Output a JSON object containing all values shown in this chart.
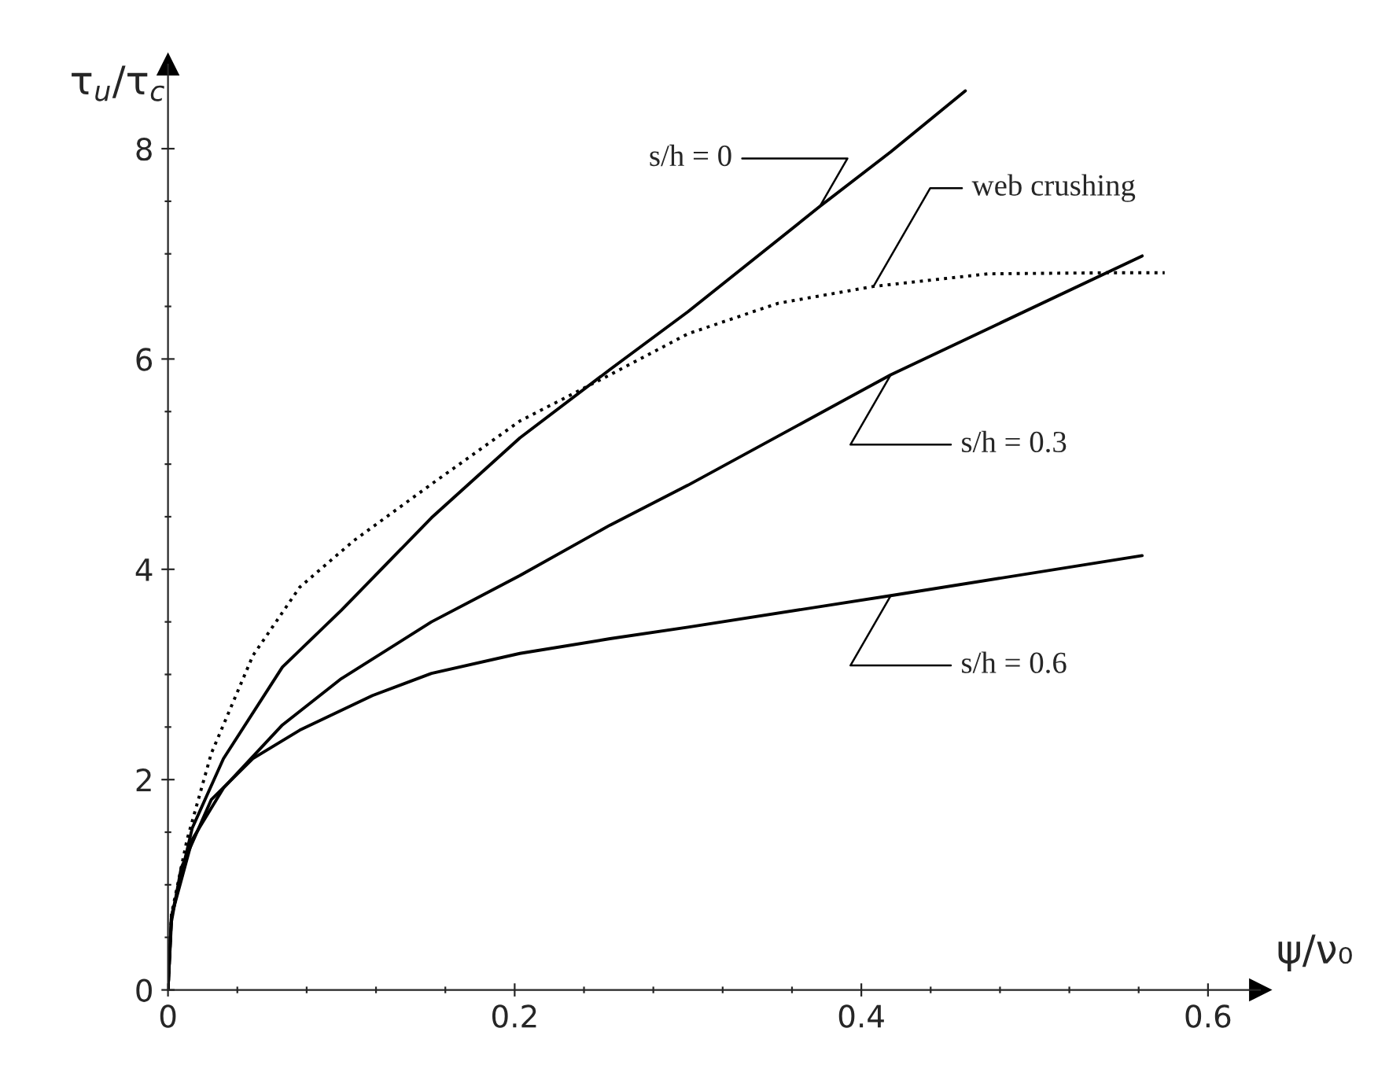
{
  "chart_data": {
    "type": "line",
    "xlabel": "ψ/ν₀",
    "ylabel": "τ$_{u}$/τ$_{c}$",
    "xlim": [
      0,
      0.63
    ],
    "ylim": [
      0,
      8.8
    ],
    "xticks": [
      0,
      {
        "value": 0.04,
        "label": null
      },
      {
        "value": 0.08,
        "label": null
      },
      {
        "value": 0.12,
        "label": null
      },
      {
        "value": 0.16,
        "label": null
      },
      0.2,
      {
        "value": 0.24,
        "label": null
      },
      {
        "value": 0.28,
        "label": null
      },
      {
        "value": 0.32,
        "label": null
      },
      {
        "value": 0.36,
        "label": null
      },
      0.4,
      {
        "value": 0.44,
        "label": null
      },
      {
        "value": 0.48,
        "label": null
      },
      {
        "value": 0.52,
        "label": null
      },
      {
        "value": 0.56,
        "label": null
      },
      0.6
    ],
    "yticks": [
      0,
      {
        "value": 0.5,
        "label": null
      },
      {
        "value": 1,
        "label": null
      },
      {
        "value": 1.5,
        "label": null
      },
      2,
      {
        "value": 2.5,
        "label": null
      },
      {
        "value": 3,
        "label": null
      },
      {
        "value": 3.5,
        "label": null
      },
      4,
      {
        "value": 4.5,
        "label": null
      },
      {
        "value": 5,
        "label": null
      },
      {
        "value": 5.5,
        "label": null
      },
      6,
      {
        "value": 6.5,
        "label": null
      },
      {
        "value": 7,
        "label": null
      },
      {
        "value": 7.5,
        "label": null
      },
      8
    ],
    "grid": false,
    "legend": false,
    "marker": "none",
    "series": [
      {
        "name": "s/h = 0",
        "color": "#000000",
        "line_style": "solid",
        "x": [
          0,
          0.002,
          0.014,
          0.032,
          0.066,
          0.1,
          0.152,
          0.203,
          0.255,
          0.3,
          0.376,
          0.417,
          0.46
        ],
        "values": [
          0,
          0.7,
          1.54,
          2.2,
          3.07,
          3.61,
          4.49,
          5.25,
          5.9,
          6.45,
          7.45,
          7.97,
          8.55
        ]
      },
      {
        "name": "web crushing",
        "color": "#000000",
        "line_style": "dotted",
        "x": [
          0,
          0.002,
          0.011,
          0.025,
          0.049,
          0.076,
          0.107,
          0.152,
          0.203,
          0.255,
          0.3,
          0.352,
          0.407,
          0.473,
          0.542,
          0.575
        ],
        "values": [
          0,
          0.72,
          1.43,
          2.25,
          3.18,
          3.83,
          4.27,
          4.81,
          5.41,
          5.85,
          6.24,
          6.53,
          6.69,
          6.81,
          6.82,
          6.82
        ]
      },
      {
        "name": "s/h = 0.3",
        "color": "#000000",
        "line_style": "solid",
        "x": [
          0,
          0.002,
          0.014,
          0.032,
          0.066,
          0.1,
          0.152,
          0.203,
          0.255,
          0.3,
          0.417,
          0.562
        ],
        "values": [
          0,
          0.7,
          1.43,
          1.92,
          2.52,
          2.96,
          3.5,
          3.94,
          4.42,
          4.8,
          5.85,
          6.98
        ]
      },
      {
        "name": "s/h = 0.6",
        "color": "#000000",
        "line_style": "solid",
        "x": [
          0,
          0.002,
          0.0076,
          0.025,
          0.049,
          0.076,
          0.118,
          0.152,
          0.203,
          0.255,
          0.3,
          0.417,
          0.562
        ],
        "values": [
          0,
          0.65,
          1.16,
          1.81,
          2.2,
          2.47,
          2.8,
          3.01,
          3.2,
          3.34,
          3.45,
          3.75,
          4.13
        ]
      }
    ]
  }
}
